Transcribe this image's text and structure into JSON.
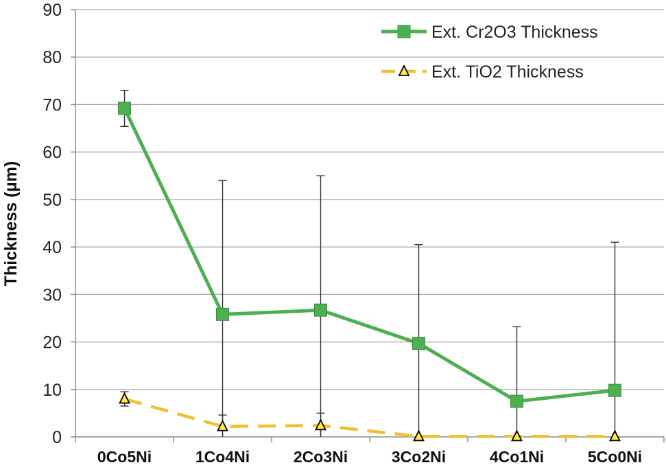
{
  "chart_data": {
    "type": "line",
    "categories": [
      "0Co5Ni",
      "1Co4Ni",
      "2Co3Ni",
      "3Co2Ni",
      "4Co1Ni",
      "5Co0Ni"
    ],
    "ylabel": "Thickness (µm)",
    "xlabel": "",
    "ylim": [
      0,
      90
    ],
    "yticks": [
      0,
      10,
      20,
      30,
      40,
      50,
      60,
      70,
      80,
      90
    ],
    "grid": "horizontal",
    "legend_position": "top-right",
    "series": [
      {
        "name": "Ext. Cr2O3 Thickness",
        "values": [
          69.2,
          25.8,
          26.7,
          19.7,
          7.5,
          9.8
        ],
        "error_upper": [
          73.0,
          54.0,
          55.0,
          40.5,
          23.2,
          41.0
        ],
        "error_lower": [
          65.4,
          0,
          0,
          0,
          0,
          0
        ],
        "color": "#4caf50",
        "marker": "square",
        "line_style": "solid"
      },
      {
        "name": "Ext. TiO2 Thickness",
        "values": [
          8.0,
          2.2,
          2.4,
          0.1,
          0.1,
          0.1
        ],
        "error_upper": [
          9.5,
          4.6,
          5.0,
          0.1,
          0.1,
          0.1
        ],
        "error_lower": [
          6.5,
          0,
          0,
          0.1,
          0.1,
          0.1
        ],
        "color": "#f0c030",
        "marker": "triangle",
        "line_style": "dashed"
      }
    ]
  }
}
